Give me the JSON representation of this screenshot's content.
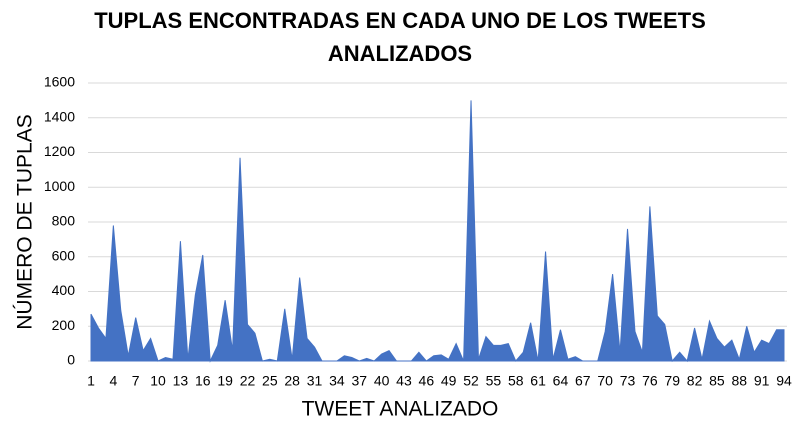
{
  "chart_data": {
    "type": "area",
    "title": [
      "TUPLAS ENCONTRADAS EN CADA UNO DE LOS TWEETS",
      "ANALIZADOS"
    ],
    "x_label": "TWEET ANALIZADO",
    "y_label": "NÚMERO DE TUPLAS",
    "categories": [
      "1",
      null,
      null,
      "4",
      null,
      null,
      "7",
      null,
      null,
      "10",
      null,
      null,
      "13",
      null,
      null,
      "16",
      null,
      null,
      "19",
      null,
      null,
      "22",
      null,
      null,
      "25",
      null,
      null,
      "28",
      null,
      null,
      "31",
      null,
      null,
      "34",
      null,
      null,
      "37",
      null,
      null,
      "40",
      null,
      null,
      "43",
      null,
      null,
      "46",
      null,
      null,
      "49",
      null,
      null,
      "52",
      null,
      null,
      "55",
      null,
      null,
      "58",
      null,
      null,
      "61",
      null,
      null,
      "64",
      null,
      null,
      "67",
      null,
      null,
      "70",
      null,
      null,
      "73",
      null,
      null,
      "76",
      null,
      null,
      "79",
      null,
      null,
      "82",
      null,
      null,
      "85",
      null,
      null,
      "88",
      null,
      null,
      "91",
      null,
      null,
      "94"
    ],
    "values": [
      270,
      190,
      130,
      780,
      290,
      30,
      250,
      60,
      130,
      0,
      20,
      10,
      690,
      10,
      380,
      610,
      0,
      90,
      350,
      60,
      1170,
      210,
      160,
      0,
      10,
      0,
      300,
      10,
      480,
      130,
      80,
      0,
      0,
      0,
      30,
      20,
      0,
      15,
      0,
      40,
      60,
      0,
      0,
      0,
      50,
      0,
      30,
      35,
      10,
      100,
      0,
      1500,
      10,
      140,
      90,
      90,
      100,
      0,
      50,
      220,
      0,
      630,
      10,
      180,
      10,
      25,
      0,
      0,
      0,
      170,
      500,
      50,
      760,
      170,
      50,
      890,
      260,
      210,
      0,
      50,
      0,
      190,
      10,
      230,
      130,
      80,
      120,
      10,
      200,
      50,
      120,
      100,
      180,
      180
    ],
    "color": "#4472c4",
    "ylim": [
      0,
      1600
    ],
    "yticks": [
      0,
      200,
      400,
      600,
      800,
      1000,
      1200,
      1400,
      1600
    ],
    "grid": true
  }
}
